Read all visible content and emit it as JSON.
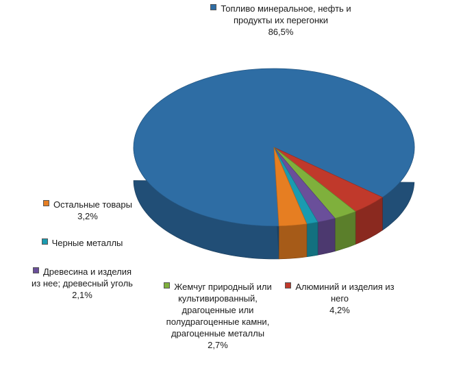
{
  "chart_data": {
    "type": "pie",
    "slices": [
      {
        "label": "Топливо минеральное, нефть и продукты их перегонки",
        "value_text": "86,5%",
        "value": 86.5,
        "color": "#2e6da4"
      },
      {
        "label": "Алюминий и изделия из него",
        "value_text": "4,2%",
        "value": 4.2,
        "color": "#c0392b"
      },
      {
        "label": "Жемчуг природный или культивированный, драгоценные или полудрагоценные камни, драгоценные металлы",
        "value_text": "2,7%",
        "value": 2.7,
        "color": "#7fb03c"
      },
      {
        "label": "Древесина и изделия из нее; древесный уголь",
        "value_text": "2,1%",
        "value": 2.1,
        "color": "#6a4f9a"
      },
      {
        "label": "Черные металлы",
        "value_text": "",
        "value": 1.3,
        "color": "#1a9bb0"
      },
      {
        "label": "Остальные товары",
        "value_text": "3,2%",
        "value": 3.2,
        "color": "#e67e22"
      }
    ]
  }
}
